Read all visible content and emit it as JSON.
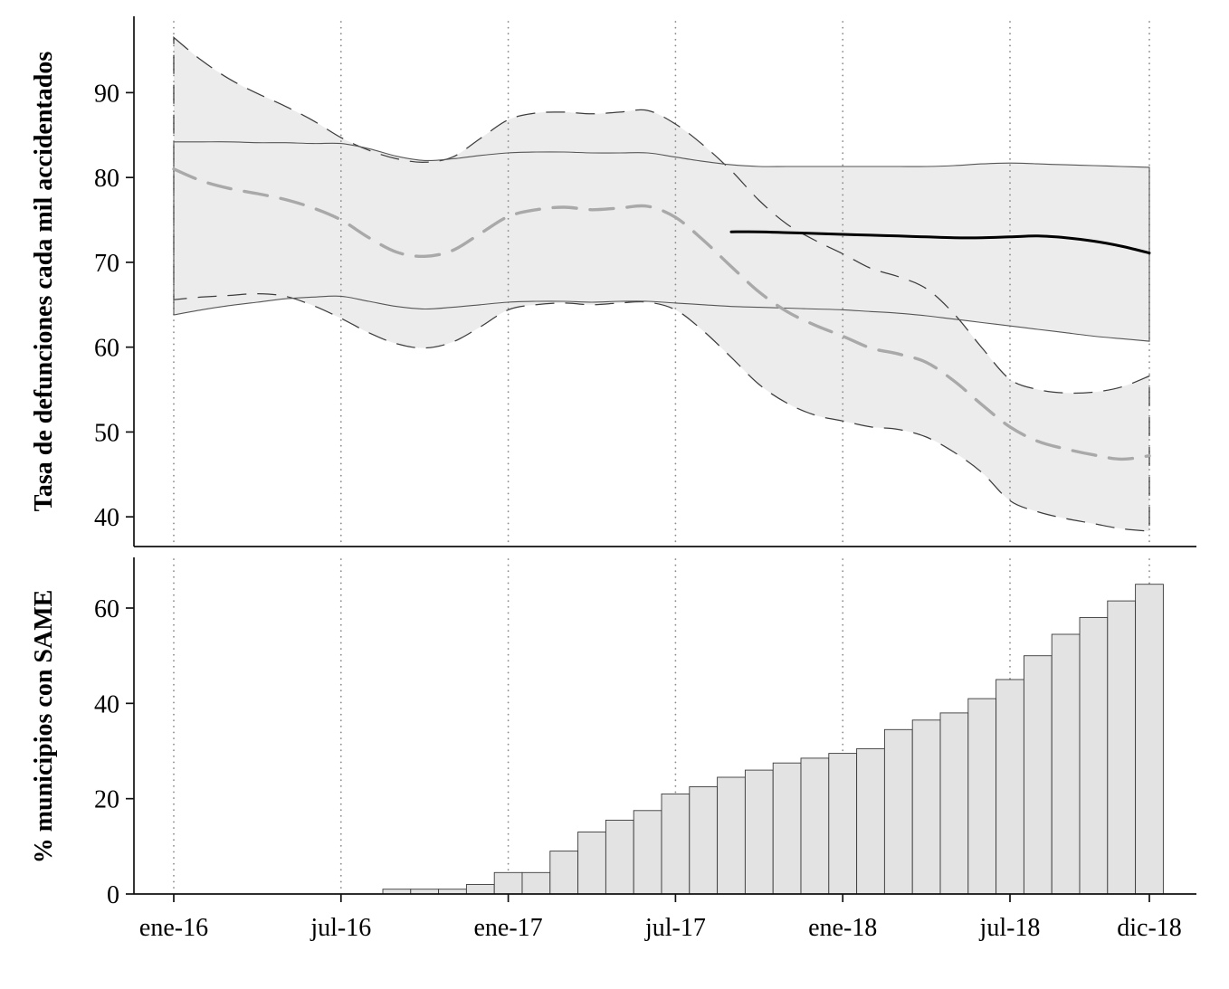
{
  "figure": {
    "background": "#ffffff",
    "colors": {
      "band_fill": "#ececec",
      "bar_fill": "#e3e3e3",
      "bar_border": "#3a3a3a",
      "counterfactual_line": "#a9a9a9",
      "observed_line": "#000000",
      "ci_dashed_line": "#3d3d3d",
      "ci_solid_line": "#565656",
      "gridline": "#8c8c8c",
      "axis": "#111111"
    }
  },
  "chart_data": [
    {
      "type": "line",
      "panel": "top",
      "title": "",
      "ylabel": "Tasa de defunciones cada mil accidentados",
      "ylim": [
        36.5,
        99
      ],
      "yticks": [
        40,
        50,
        60,
        70,
        80,
        90
      ],
      "grid": "vertical-dotted",
      "x_axis": {
        "unit": "month",
        "start": "ene-16",
        "end": "dic-18",
        "n_months": 36,
        "tick_labels": [
          "ene-16",
          "jul-16",
          "ene-17",
          "jul-17",
          "ene-18",
          "jul-18",
          "dic-18"
        ],
        "tick_month_index": [
          0,
          6,
          12,
          18,
          24,
          30,
          35
        ]
      },
      "series": [
        {
          "name": "counterfactual_rate",
          "line": "dashed_bold",
          "x_start": 0,
          "values": [
            81.0,
            79.6,
            78.7,
            78.1,
            77.4,
            76.4,
            75.0,
            72.9,
            71.2,
            70.7,
            71.4,
            73.4,
            75.4,
            76.2,
            76.5,
            76.2,
            76.4,
            76.6,
            75.3,
            72.6,
            69.5,
            66.5,
            64.2,
            62.6,
            61.3,
            59.9,
            59.2,
            58.2,
            56.0,
            53.2,
            50.6,
            48.9,
            48.0,
            47.3,
            46.8,
            47.2
          ]
        },
        {
          "name": "counterfactual_ci_upper",
          "line": "none",
          "x_start": 0,
          "values": [
            96.5,
            93.8,
            91.6,
            89.9,
            88.4,
            86.7,
            84.7,
            83.2,
            82.2,
            81.8,
            82.4,
            84.6,
            86.8,
            87.6,
            87.7,
            87.5,
            87.7,
            87.9,
            86.3,
            83.8,
            80.8,
            77.3,
            74.5,
            72.6,
            71.0,
            69.3,
            68.3,
            66.9,
            63.9,
            59.9,
            56.2,
            55.0,
            54.6,
            54.7,
            55.3,
            56.6
          ]
        },
        {
          "name": "counterfactual_ci_lower",
          "line": "none",
          "x_start": 0,
          "values": [
            65.6,
            65.9,
            66.1,
            66.3,
            66.0,
            64.9,
            63.4,
            61.7,
            60.4,
            59.9,
            60.6,
            62.4,
            64.4,
            65.0,
            65.2,
            65.0,
            65.2,
            65.3,
            64.4,
            61.9,
            58.8,
            55.6,
            53.4,
            52.0,
            51.3,
            50.6,
            50.3,
            49.4,
            47.6,
            45.2,
            41.9,
            40.6,
            39.8,
            39.2,
            38.6,
            38.3
          ]
        },
        {
          "name": "observed_rate",
          "line": "solid_bold",
          "x_start": 20,
          "values": [
            73.6,
            73.6,
            73.5,
            73.4,
            73.3,
            73.2,
            73.1,
            73.0,
            72.9,
            72.9,
            73.0,
            73.1,
            72.9,
            72.5,
            71.9,
            71.1
          ]
        },
        {
          "name": "observed_ci_upper",
          "line": "none",
          "x_start": 0,
          "values": [
            84.2,
            84.2,
            84.2,
            84.1,
            84.1,
            84.0,
            84.0,
            83.4,
            82.5,
            82.0,
            82.2,
            82.6,
            82.9,
            83.0,
            83.0,
            82.9,
            82.9,
            82.9,
            82.4,
            81.9,
            81.5,
            81.3,
            81.3,
            81.3,
            81.3,
            81.3,
            81.3,
            81.3,
            81.4,
            81.6,
            81.7,
            81.6,
            81.5,
            81.4,
            81.3,
            81.2
          ]
        },
        {
          "name": "observed_ci_lower",
          "line": "none",
          "x_start": 0,
          "values": [
            63.8,
            64.4,
            64.9,
            65.3,
            65.7,
            65.9,
            66.0,
            65.4,
            64.8,
            64.5,
            64.7,
            65.0,
            65.3,
            65.4,
            65.4,
            65.3,
            65.4,
            65.4,
            65.2,
            65.0,
            64.8,
            64.7,
            64.6,
            64.5,
            64.4,
            64.2,
            64.0,
            63.7,
            63.3,
            62.9,
            62.5,
            62.1,
            61.7,
            61.3,
            61.0,
            60.7
          ]
        }
      ],
      "bands": [
        {
          "upper": "counterfactual_ci_upper",
          "lower": "counterfactual_ci_lower",
          "edge": "dashed"
        },
        {
          "upper": "observed_ci_upper",
          "lower": "observed_ci_lower",
          "edge": "solid"
        }
      ]
    },
    {
      "type": "bar",
      "panel": "bottom",
      "title": "",
      "ylabel": "% municipios con SAME",
      "ylim": [
        0,
        68
      ],
      "yticks": [
        0,
        20,
        40,
        60
      ],
      "grid": "vertical-dotted",
      "start_month_index": 8,
      "categories": [
        "sep-16",
        "oct-16",
        "nov-16",
        "dic-16",
        "ene-17",
        "feb-17",
        "mar-17",
        "abr-17",
        "may-17",
        "jun-17",
        "jul-17",
        "ago-17",
        "sep-17",
        "oct-17",
        "nov-17",
        "dic-17",
        "ene-18",
        "feb-18",
        "mar-18",
        "abr-18",
        "may-18",
        "jun-18",
        "jul-18",
        "ago-18",
        "sep-18",
        "oct-18",
        "nov-18",
        "dic-18"
      ],
      "values": [
        1,
        1,
        1,
        2,
        4.5,
        4.5,
        9,
        13,
        15.5,
        17.5,
        21,
        22.5,
        24.5,
        26,
        27.5,
        28.5,
        29.5,
        30.5,
        34.5,
        36.5,
        38,
        41,
        45,
        50,
        54.5,
        58,
        61.5,
        65
      ],
      "x_axis": {
        "tick_labels": [
          "ene-16",
          "jul-16",
          "ene-17",
          "jul-17",
          "ene-18",
          "jul-18",
          "dic-18"
        ],
        "tick_month_index": [
          0,
          6,
          12,
          18,
          24,
          30,
          35
        ]
      }
    }
  ]
}
